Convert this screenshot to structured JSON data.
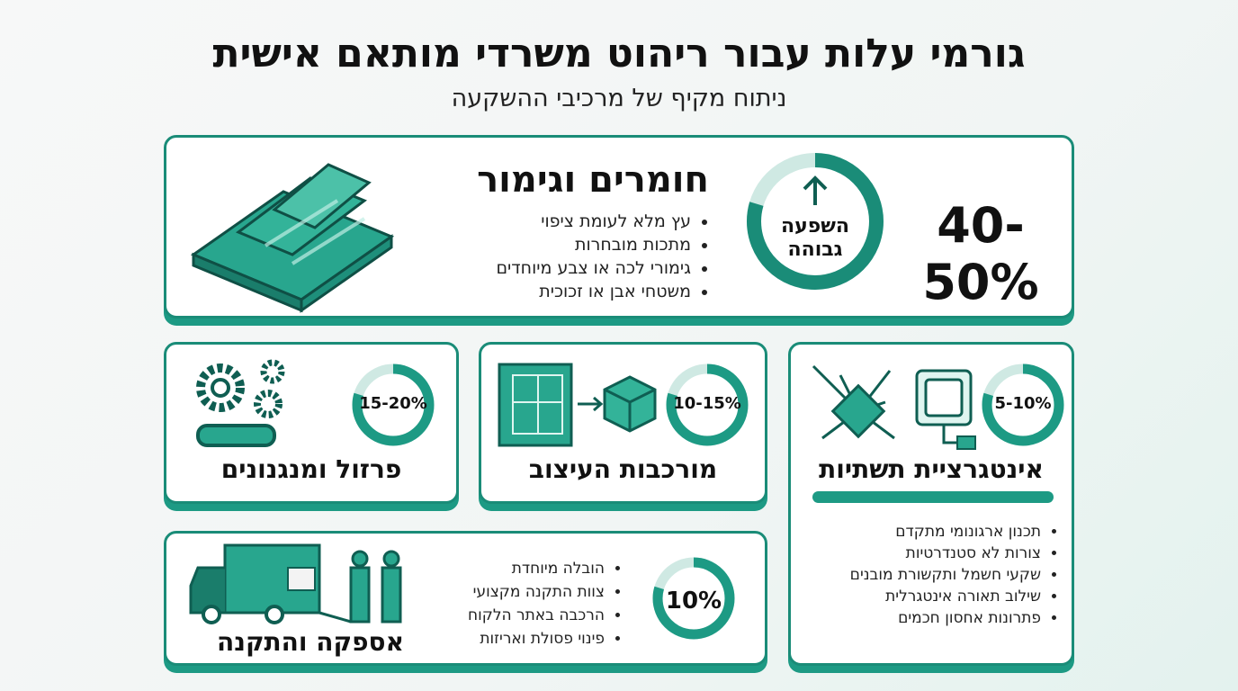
{
  "header": {
    "title": "גורמי עלות עבור ריהוט משרדי מותאם אישית",
    "subtitle": "ניתוח מקיף של מרכיבי ההשקעה"
  },
  "cards": [
    {
      "title": "חומרים וגימור",
      "percent": "40-50%",
      "badge": [
        "השפעה",
        "גבוהה"
      ],
      "bullets": [
        "עץ מלא לעומת ציפוי",
        "מתכות מובחרות",
        "גימורי לכה או צבע מיוחדים",
        "משטחי אבן או זכוכית"
      ]
    },
    {
      "title": "פרזול ומנגנונים",
      "percent": "15-20%"
    },
    {
      "title": "מורכבות העיצוב",
      "percent": "10-15%"
    },
    {
      "title": "אינטגרציית תשתיות",
      "percent": "5-10%",
      "bullets": [
        "תכנון ארגונומי מתקדם",
        "צורות לא סטנדרטיות",
        "שקעי חשמל ותקשורת מובנים",
        "שילוב תאורה אינטגרלית",
        "פתרונות אחסון חכמים"
      ]
    },
    {
      "title": "אספקה והתקנה",
      "percent": "10%",
      "bullets": [
        "הובלה מיוחדת",
        "צוות התקנה מקצועי",
        "הרכבה באתר הלקוח",
        "פינוי פסולת ואריזות"
      ]
    }
  ]
}
